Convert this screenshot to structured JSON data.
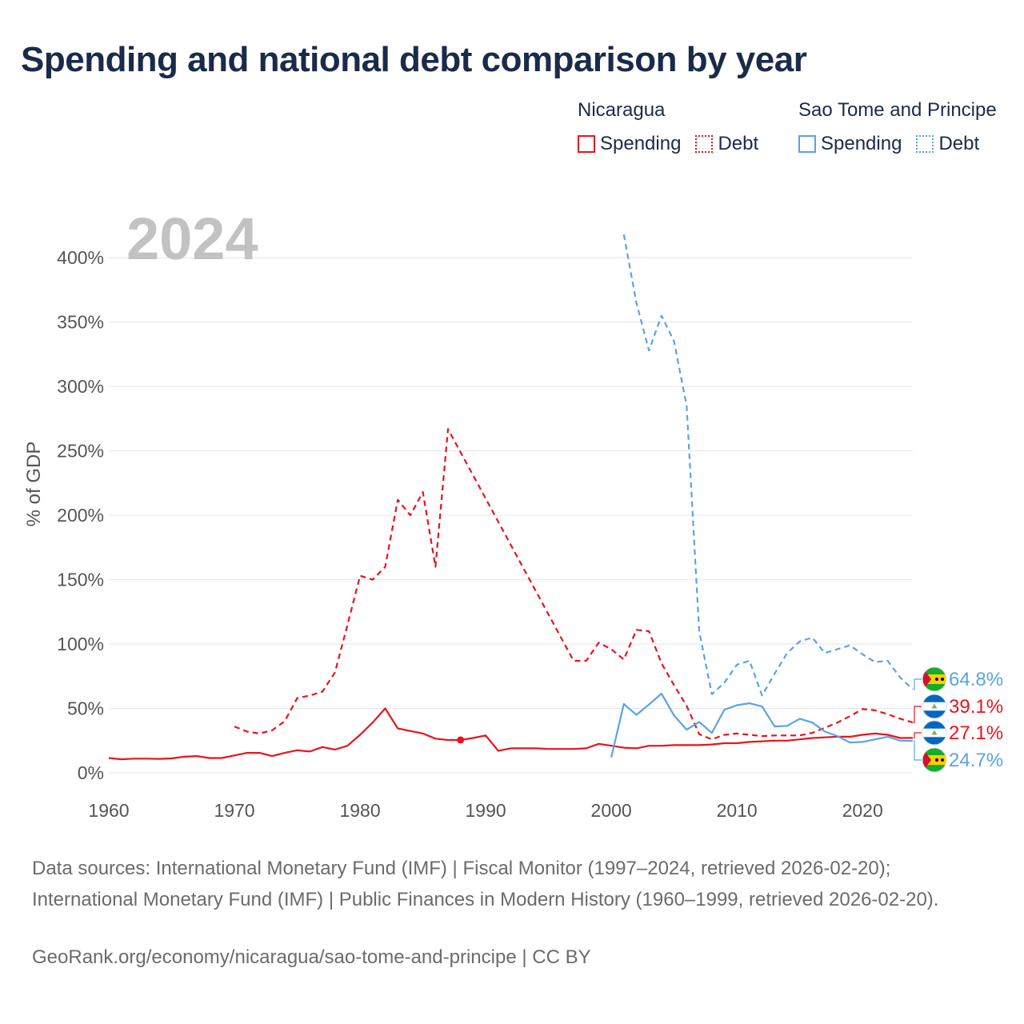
{
  "chart_data": {
    "type": "line",
    "title": "Spending and national debt comparison by year",
    "year_label": "2024",
    "ylabel": "% of GDP",
    "xlim": [
      1960,
      2024
    ],
    "ylim": [
      0,
      420
    ],
    "x_ticks": [
      "1960",
      "1970",
      "1980",
      "1990",
      "2000",
      "2010",
      "2020"
    ],
    "y_ticks": [
      "0%",
      "50%",
      "100%",
      "150%",
      "200%",
      "250%",
      "300%",
      "350%",
      "400%"
    ],
    "legend": {
      "groups": [
        {
          "name": "Nicaragua",
          "items": [
            "Spending",
            "Debt"
          ]
        },
        {
          "name": "Sao Tome and Principe",
          "items": [
            "Spending",
            "Debt"
          ]
        }
      ]
    },
    "colors": {
      "nicaragua": "#e8141a",
      "sao_tome": "#5aa3e6"
    },
    "series": [
      {
        "name": "Nicaragua Spending",
        "country": "nicaragua",
        "style": "solid",
        "x": [
          1960,
          1961,
          1962,
          1963,
          1964,
          1965,
          1966,
          1967,
          1968,
          1969,
          1970,
          1971,
          1972,
          1973,
          1974,
          1975,
          1976,
          1977,
          1978,
          1979,
          1980,
          1981,
          1982,
          1983,
          1984,
          1985,
          1986,
          1987,
          1988,
          1989,
          1990,
          1991,
          1992,
          1993,
          1994,
          1995,
          1996,
          1997,
          1998,
          1999,
          2000,
          2001,
          2002,
          2003,
          2004,
          2005,
          2006,
          2007,
          2008,
          2009,
          2010,
          2011,
          2012,
          2013,
          2014,
          2015,
          2016,
          2017,
          2018,
          2019,
          2020,
          2021,
          2022,
          2023,
          2024
        ],
        "values": [
          11.5,
          10.5,
          11,
          11,
          10.8,
          11.2,
          12.5,
          13,
          11.5,
          11.5,
          13.5,
          15.5,
          15.5,
          13,
          15.5,
          17.5,
          16.5,
          20,
          18,
          21,
          29.5,
          39,
          50,
          34.5,
          32.5,
          30.5,
          26.5,
          25.5,
          25.5,
          27,
          29,
          17,
          19,
          19,
          19,
          18.5,
          18.5,
          18.5,
          19,
          22.5,
          21,
          19.5,
          19,
          21,
          21,
          21.5,
          21.5,
          21.5,
          22,
          23,
          23,
          24,
          24.5,
          25,
          25,
          26,
          27,
          27.5,
          28,
          28,
          29.5,
          30.5,
          29.5,
          27,
          27.1
        ]
      },
      {
        "name": "Nicaragua Debt",
        "country": "nicaragua",
        "style": "dashed",
        "x": [
          1970,
          1971,
          1972,
          1973,
          1974,
          1975,
          1976,
          1977,
          1978,
          1979,
          1980,
          1981,
          1982,
          1983,
          1984,
          1985,
          1986,
          1987,
          1997,
          1998,
          1999,
          2000,
          2001,
          2002,
          2003,
          2004,
          2005,
          2006,
          2007,
          2008,
          2009,
          2010,
          2011,
          2012,
          2013,
          2014,
          2015,
          2016,
          2017,
          2018,
          2019,
          2020,
          2021,
          2022,
          2023,
          2024
        ],
        "values": [
          36,
          32,
          30.5,
          33,
          40,
          58,
          60,
          63,
          78,
          115,
          153,
          150,
          160,
          212,
          200,
          218,
          160,
          267,
          87,
          87,
          101,
          96,
          88,
          111,
          110,
          85,
          68,
          52,
          30,
          26,
          29.5,
          30.5,
          29.5,
          28.5,
          29,
          29,
          29,
          31,
          35,
          39,
          44,
          49.5,
          48.5,
          45.5,
          42,
          39.1
        ]
      },
      {
        "name": "Nicaragua Debt (1988)",
        "country": "nicaragua",
        "style": "marker",
        "x": [
          1988
        ],
        "values": [
          25.5
        ]
      },
      {
        "name": "Sao Tome and Principe Spending",
        "country": "sao_tome",
        "style": "solid",
        "x": [
          2000,
          2001,
          2002,
          2003,
          2004,
          2005,
          2006,
          2007,
          2008,
          2009,
          2010,
          2011,
          2012,
          2013,
          2014,
          2015,
          2016,
          2017,
          2018,
          2019,
          2020,
          2021,
          2022,
          2023,
          2024
        ],
        "values": [
          12,
          53.5,
          45,
          53,
          61.5,
          44.5,
          33.5,
          39.5,
          31,
          49,
          52.5,
          54,
          51.5,
          36,
          36.5,
          42,
          39,
          32,
          28.5,
          23.5,
          24,
          26,
          28,
          25,
          24.7
        ]
      },
      {
        "name": "Sao Tome and Principe Debt",
        "country": "sao_tome",
        "style": "dashed",
        "x": [
          2001,
          2002,
          2003,
          2004,
          2005,
          2006,
          2007,
          2008,
          2009,
          2010,
          2011,
          2012,
          2013,
          2014,
          2015,
          2016,
          2017,
          2018,
          2019,
          2020,
          2021,
          2022,
          2023,
          2024
        ],
        "values": [
          418,
          365,
          328,
          355,
          335,
          285,
          110,
          61,
          70,
          84,
          87,
          60,
          77,
          93,
          102,
          105,
          93,
          96,
          99,
          92,
          86,
          87,
          74,
          64.8
        ]
      }
    ],
    "end_labels": [
      {
        "country": "sao_tome",
        "value": 64.8,
        "text": "64.8%"
      },
      {
        "country": "nicaragua",
        "value": 39.1,
        "text": "39.1%"
      },
      {
        "country": "nicaragua",
        "value": 27.1,
        "text": "27.1%"
      },
      {
        "country": "sao_tome",
        "value": 24.7,
        "text": "24.7%"
      }
    ]
  },
  "footer": {
    "sources": "Data sources: International Monetary Fund (IMF) | Fiscal Monitor (1997–2024, retrieved 2026-02-20); International Monetary Fund (IMF) | Public Finances in Modern History (1960–1999, retrieved 2026-02-20).",
    "credit": "GeoRank.org/economy/nicaragua/sao-tome-and-principe | CC BY"
  }
}
